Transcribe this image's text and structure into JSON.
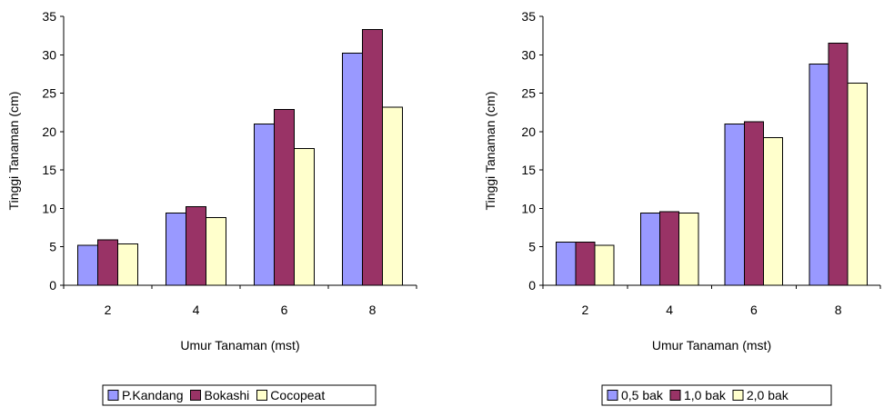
{
  "chart_data": [
    {
      "type": "bar",
      "title": "",
      "xlabel": "Umur Tanaman (mst)",
      "ylabel": "Tinggi Tanaman (cm)",
      "ylim": [
        0,
        35
      ],
      "yticks": [
        "0",
        "5",
        "10",
        "15",
        "20",
        "25",
        "30",
        "35"
      ],
      "categories": [
        "2",
        "4",
        "6",
        "8"
      ],
      "grid": false,
      "legend_position": "bottom",
      "series": [
        {
          "name": "P.Kandang",
          "color": "#9999ff",
          "values": [
            5.2,
            9.4,
            21.0,
            30.2
          ]
        },
        {
          "name": "Bokashi",
          "color": "#993366",
          "values": [
            5.9,
            10.2,
            22.9,
            33.3
          ]
        },
        {
          "name": "Cocopeat",
          "color": "#ffffcc",
          "values": [
            5.4,
            8.8,
            17.8,
            23.2
          ]
        }
      ]
    },
    {
      "type": "bar",
      "title": "",
      "xlabel": "Umur Tanaman (mst)",
      "ylabel": "Tinggi Tanaman (cm)",
      "ylim": [
        0,
        35
      ],
      "yticks": [
        "0",
        "5",
        "10",
        "15",
        "20",
        "25",
        "30",
        "35"
      ],
      "categories": [
        "2",
        "4",
        "6",
        "8"
      ],
      "grid": false,
      "legend_position": "bottom",
      "series": [
        {
          "name": "0,5 bak",
          "color": "#9999ff",
          "values": [
            5.6,
            9.4,
            21.0,
            28.8
          ]
        },
        {
          "name": "1,0 bak",
          "color": "#993366",
          "values": [
            5.6,
            9.6,
            21.3,
            31.5
          ]
        },
        {
          "name": "2,0 bak",
          "color": "#ffffcc",
          "values": [
            5.2,
            9.4,
            19.2,
            26.3
          ]
        }
      ]
    }
  ]
}
